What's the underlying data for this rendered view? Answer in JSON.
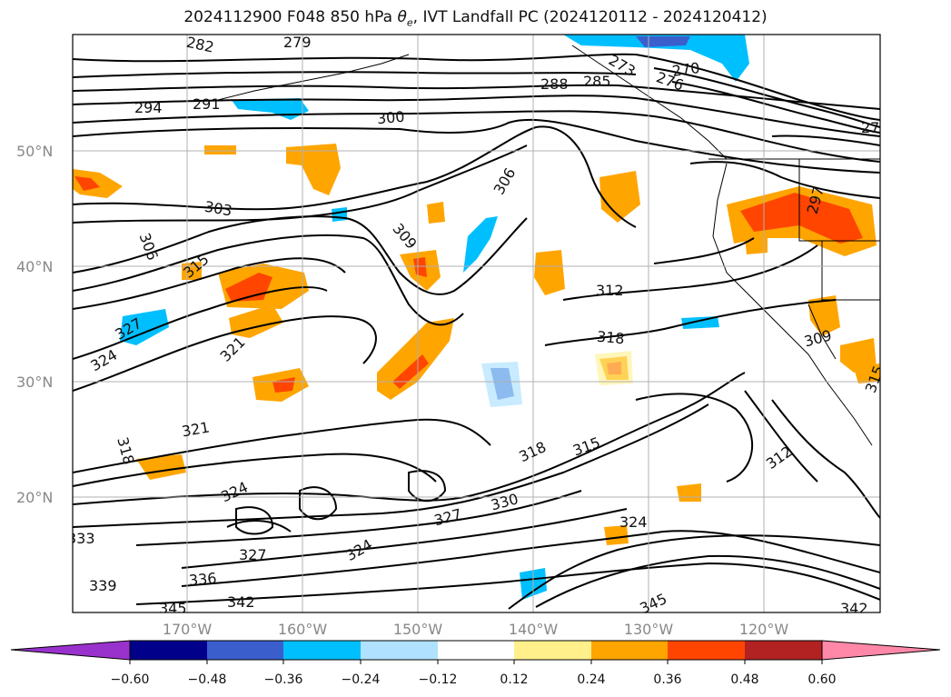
{
  "title": {
    "prefix": "2024112900 F048 850 hPa ",
    "symbol": "θ",
    "symbol_sub": "e",
    "suffix": ", IVT Landfall PC (2024120112 - 2024120412)"
  },
  "map": {
    "lat_labels": [
      "50°N",
      "40°N",
      "30°N",
      "20°N"
    ],
    "lon_labels": [
      "170°W",
      "160°W",
      "150°W",
      "140°W",
      "130°W",
      "120°W"
    ],
    "contour_labels": [
      "282",
      "279",
      "294",
      "291",
      "300",
      "288",
      "285",
      "270",
      "276",
      "273",
      "27",
      "306",
      "303",
      "306",
      "315",
      "309",
      "312",
      "318",
      "321",
      "324",
      "327",
      "309",
      "315",
      "321",
      "318",
      "318",
      "315",
      "312",
      "324",
      "324",
      "327",
      "330",
      "333",
      "327",
      "324",
      "339",
      "336",
      "342",
      "345",
      "345",
      "342",
      "297"
    ]
  },
  "colorbar": {
    "ticks": [
      "−0.60",
      "−0.48",
      "−0.36",
      "−0.24",
      "−0.12",
      "0.12",
      "0.24",
      "0.36",
      "0.48",
      "0.60"
    ],
    "colors": [
      "#9932cc",
      "#00008b",
      "#3a5fcd",
      "#00bfff",
      "#b0e2ff",
      "#ffffff",
      "#fff08c",
      "#ffa500",
      "#ff4500",
      "#b22222",
      "#ff88a8"
    ]
  },
  "field_colors": {
    "orange": "#ffa500",
    "red": "#ff4500",
    "yellow": "#fff08c",
    "deepblue": "#3a5fcd",
    "cyan": "#00bfff",
    "lightblue": "#b0e2ff"
  }
}
